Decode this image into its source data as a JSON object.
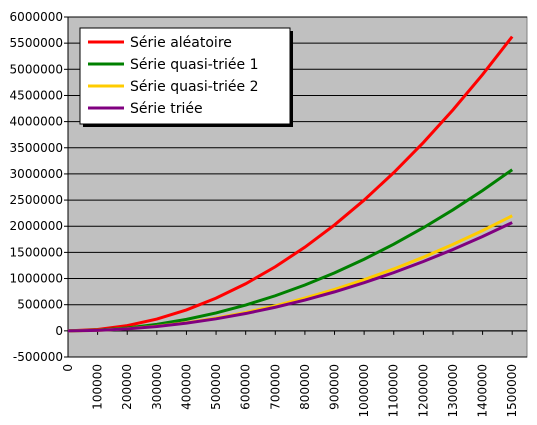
{
  "chart_data": {
    "type": "line",
    "x": [
      0,
      100000,
      200000,
      300000,
      400000,
      500000,
      600000,
      700000,
      800000,
      900000,
      1000000,
      1100000,
      1200000,
      1300000,
      1400000,
      1500000
    ],
    "series": [
      {
        "name": "Série aléatoire",
        "color": "#ff0000",
        "values": [
          0,
          25000,
          100000,
          225000,
          400000,
          625000,
          900000,
          1225000,
          1600000,
          2025000,
          2500000,
          3025000,
          3600000,
          4225000,
          4900000,
          5625000
        ]
      },
      {
        "name": "Série quasi-triée 1",
        "color": "#008000",
        "values": [
          0,
          14000,
          55000,
          123000,
          219000,
          342000,
          493000,
          671000,
          876000,
          1109000,
          1369000,
          1657000,
          1971000,
          2314000,
          2683000,
          3080000
        ]
      },
      {
        "name": "Série quasi-triée 2",
        "color": "#ffcc00",
        "values": [
          0,
          10000,
          39000,
          88000,
          156000,
          244000,
          352000,
          479000,
          626000,
          792000,
          978000,
          1183000,
          1408000,
          1653000,
          1916000,
          2200000
        ]
      },
      {
        "name": "Série triée",
        "color": "#800080",
        "values": [
          0,
          9000,
          37000,
          83000,
          147000,
          230000,
          331000,
          451000,
          589000,
          745000,
          920000,
          1113000,
          1325000,
          1555000,
          1803000,
          2070000
        ]
      }
    ],
    "xlim": [
      0,
      1550000
    ],
    "xticks": [
      0,
      100000,
      200000,
      300000,
      400000,
      500000,
      600000,
      700000,
      800000,
      900000,
      1000000,
      1100000,
      1200000,
      1300000,
      1400000,
      1500000
    ],
    "ylim": [
      -500000,
      6000000
    ],
    "yticks": [
      -500000,
      0,
      500000,
      1000000,
      1500000,
      2000000,
      2500000,
      3000000,
      3500000,
      4000000,
      4500000,
      5000000,
      5500000,
      6000000
    ],
    "grid": true,
    "plot_background": "#c0c0c0",
    "legend": "upper-left"
  }
}
